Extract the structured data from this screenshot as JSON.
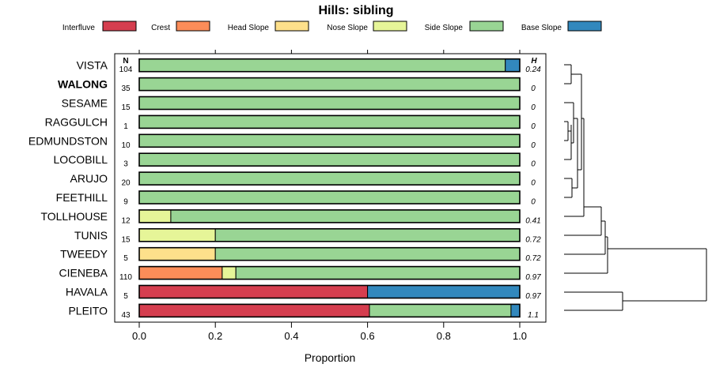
{
  "chart_data": {
    "type": "bar",
    "subtype": "stacked-horizontal-proportion",
    "title": "Hills: sibling",
    "xlabel": "Proportion",
    "ylabel": "",
    "xlim": [
      0,
      1
    ],
    "x_ticks": [
      "0.0",
      "0.2",
      "0.4",
      "0.6",
      "0.8",
      "1.0"
    ],
    "n_header": "N",
    "h_header": "H",
    "legend": [
      {
        "name": "Interfluve",
        "color": "#d53e4f"
      },
      {
        "name": "Crest",
        "color": "#fc8d59"
      },
      {
        "name": "Head Slope",
        "color": "#fee08b"
      },
      {
        "name": "Nose Slope",
        "color": "#e6f598"
      },
      {
        "name": "Side Slope",
        "color": "#99d594"
      },
      {
        "name": "Base Slope",
        "color": "#3288bd"
      }
    ],
    "categories": [
      "VISTA",
      "WALONG",
      "SESAME",
      "RAGGULCH",
      "EDMUNDSTON",
      "LOCOBILL",
      "ARUJO",
      "FEETHILL",
      "TOLLHOUSE",
      "TUNIS",
      "TWEEDY",
      "CIENEBA",
      "HAVALA",
      "PLEITO"
    ],
    "highlight": "WALONG",
    "n": [
      "104",
      "35",
      "15",
      "1",
      "10",
      "3",
      "20",
      "9",
      "12",
      "15",
      "5",
      "110",
      "5",
      "43"
    ],
    "h": [
      "0.24",
      "0",
      "0",
      "0",
      "0",
      "0",
      "0",
      "0",
      "0.41",
      "0.72",
      "0.72",
      "0.97",
      "0.97",
      "1.1"
    ],
    "series": [
      {
        "name": "Interfluve",
        "values": [
          0,
          0,
          0,
          0,
          0,
          0,
          0,
          0,
          0,
          0,
          0,
          0,
          0.6,
          0.605
        ]
      },
      {
        "name": "Crest",
        "values": [
          0,
          0,
          0,
          0,
          0,
          0,
          0,
          0,
          0,
          0,
          0,
          0.218,
          0,
          0
        ]
      },
      {
        "name": "Head Slope",
        "values": [
          0,
          0,
          0,
          0,
          0,
          0,
          0,
          0,
          0,
          0,
          0.2,
          0,
          0,
          0
        ]
      },
      {
        "name": "Nose Slope",
        "values": [
          0,
          0,
          0,
          0,
          0,
          0,
          0,
          0,
          0.083,
          0.2,
          0,
          0.036,
          0,
          0
        ]
      },
      {
        "name": "Side Slope",
        "values": [
          0.962,
          1,
          1,
          1,
          1,
          1,
          1,
          1,
          0.917,
          0.8,
          0.8,
          0.746,
          0,
          0.372
        ]
      },
      {
        "name": "Base Slope",
        "values": [
          0.038,
          0,
          0,
          0,
          0,
          0,
          0,
          0,
          0,
          0,
          0,
          0,
          0.4,
          0.023
        ]
      }
    ]
  }
}
